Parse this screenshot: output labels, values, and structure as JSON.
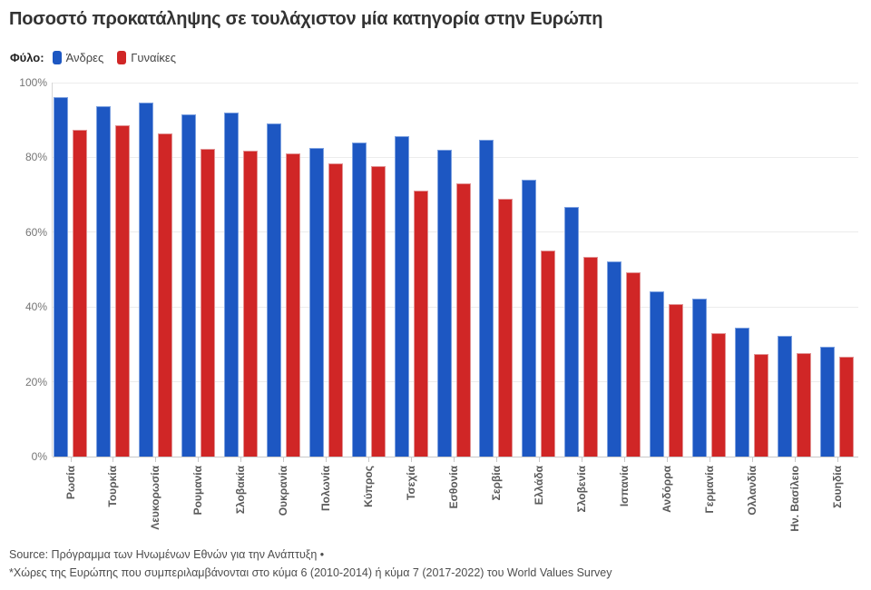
{
  "header": {
    "title": "Ποσοστό προκατάληψης σε τουλάχιστον μία κατηγορία στην Ευρώπη"
  },
  "legend": {
    "label": "Φύλο:",
    "items": [
      {
        "label": "Άνδρες",
        "color": "#1d57c2",
        "border": "#7da1e0"
      },
      {
        "label": "Γυναίκες",
        "color": "#d02626",
        "border": "#e29394"
      }
    ]
  },
  "chart_data": {
    "type": "bar",
    "title": "Ποσοστό προκατάληψης σε τουλάχιστον μία κατηγορία στην Ευρώπη",
    "xlabel": "",
    "ylabel": "",
    "ylim": [
      0,
      100
    ],
    "yticks": [
      "0%",
      "20%",
      "40%",
      "60%",
      "80%",
      "100%"
    ],
    "grid": true,
    "legend_position": "top-left",
    "categories": [
      "Ρωσία",
      "Τουρκία",
      "Λευκορωσία",
      "Ρουμανία",
      "Σλοβακία",
      "Ουκρανία",
      "Πολωνία",
      "Κύπρος",
      "Τσεχία",
      "Εσθονία",
      "Σερβία",
      "Ελλάδα",
      "Σλοβενία",
      "Ισπανία",
      "Ανδόρρα",
      "Γερμανία",
      "Ολλανδία",
      "Ην. Βασίλειο",
      "Σουηδία"
    ],
    "series": [
      {
        "name": "Άνδρες",
        "color": "#1d57c2",
        "border": "#7da1e0",
        "values": [
          96.1,
          93.8,
          94.6,
          91.6,
          91.9,
          89.2,
          82.6,
          83.9,
          85.8,
          82.1,
          84.6,
          74.1,
          66.8,
          52.3,
          44.3,
          42.3,
          34.5,
          32.4,
          29.5
        ]
      },
      {
        "name": "Γυναίκες",
        "color": "#d02626",
        "border": "#e29394",
        "values": [
          87.3,
          88.7,
          86.5,
          82.4,
          81.9,
          81.0,
          78.5,
          77.8,
          71.2,
          73.1,
          69.0,
          55.2,
          53.5,
          49.4,
          40.9,
          33.1,
          27.4,
          27.7,
          26.7
        ]
      }
    ]
  },
  "footer": {
    "line1": "Source: Πρόγραμμα των Ηνωμένων Εθνών για την Ανάπτυξη •",
    "line2": "*Χώρες της Ευρώπης που συμπεριλαμβάνονται στο κύμα 6 (2010-2014) ή κύμα 7 (2017-2022) του World Values Survey"
  }
}
